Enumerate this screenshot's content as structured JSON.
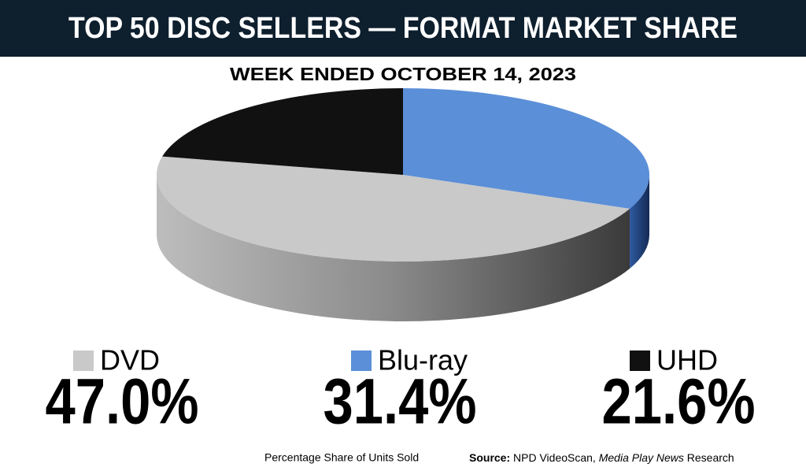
{
  "chart_data": {
    "type": "pie3d",
    "title": "TOP 50 DISC SELLERS — FORMAT MARKET SHARE",
    "subtitle": "WEEK ENDED OCTOBER 14, 2023",
    "categories": [
      "DVD",
      "Blu-ray",
      "UHD"
    ],
    "values": [
      47.0,
      31.4,
      21.6
    ],
    "value_labels": [
      "47.0%",
      "31.4%",
      "21.6%"
    ],
    "colors": [
      "#c9c9c9",
      "#5b8fd8",
      "#111111"
    ],
    "slice_order": [
      1,
      0,
      2
    ],
    "footnote": "Percentage Share of Units Sold",
    "source": {
      "label": "Source:",
      "text": "NPD VideoScan,",
      "italic": "Media Play News",
      "suffix": "Research"
    }
  }
}
